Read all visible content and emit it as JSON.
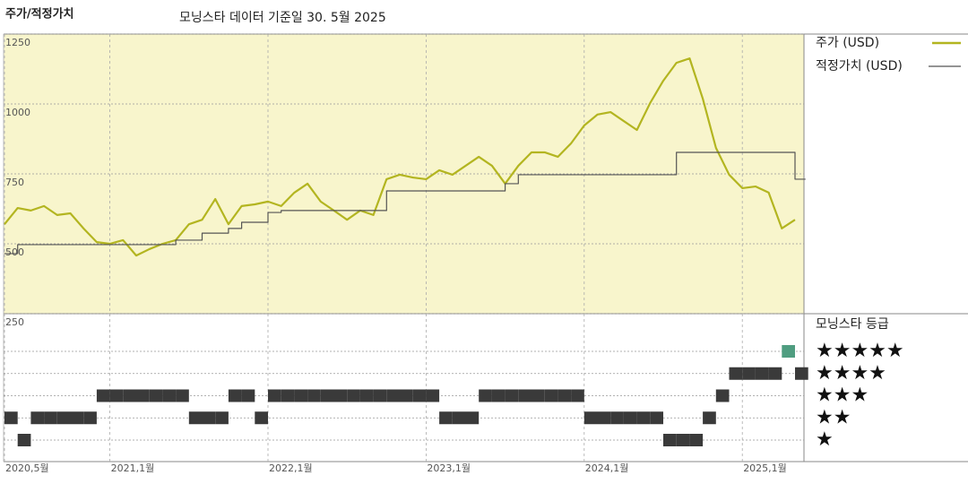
{
  "chart_data": {
    "type": "line",
    "title": "주가/적정가치",
    "subtitle": "모닝스타 데이터 기준일 30. 5월 2025",
    "x": [
      "2020-05",
      "2020-06",
      "2020-07",
      "2020-08",
      "2020-09",
      "2020-10",
      "2020-11",
      "2020-12",
      "2021-01",
      "2021-02",
      "2021-03",
      "2021-04",
      "2021-05",
      "2021-06",
      "2021-07",
      "2021-08",
      "2021-09",
      "2021-10",
      "2021-11",
      "2021-12",
      "2022-01",
      "2022-02",
      "2022-03",
      "2022-04",
      "2022-05",
      "2022-06",
      "2022-07",
      "2022-08",
      "2022-09",
      "2022-10",
      "2022-11",
      "2022-12",
      "2023-01",
      "2023-02",
      "2023-03",
      "2023-04",
      "2023-05",
      "2023-06",
      "2023-07",
      "2023-08",
      "2023-09",
      "2023-10",
      "2023-11",
      "2023-12",
      "2024-01",
      "2024-02",
      "2024-03",
      "2024-04",
      "2024-05",
      "2024-06",
      "2024-07",
      "2024-08",
      "2024-09",
      "2024-10",
      "2024-11",
      "2024-12",
      "2025-01",
      "2025-02",
      "2025-03",
      "2025-04",
      "2025-05"
    ],
    "series": [
      {
        "name": "주가 (USD)",
        "color": "#b3b520",
        "style": "line",
        "values": [
          570,
          628,
          619,
          635,
          603,
          609,
          555,
          506,
          500,
          513,
          458,
          481,
          500,
          513,
          570,
          586,
          660,
          570,
          635,
          641,
          651,
          635,
          683,
          715,
          651,
          619,
          586,
          619,
          603,
          731,
          747,
          737,
          731,
          763,
          747,
          779,
          811,
          779,
          715,
          779,
          827,
          827,
          811,
          859,
          923,
          962,
          971,
          939,
          907,
          1003,
          1083,
          1147,
          1163,
          1019,
          843,
          747,
          699,
          705,
          683,
          555,
          586
        ]
      },
      {
        "name": "적정가치 (USD)",
        "color": "#555555",
        "style": "step",
        "values": [
          465,
          497,
          497,
          497,
          497,
          497,
          497,
          497,
          497,
          497,
          497,
          497,
          497,
          513,
          513,
          538,
          538,
          555,
          577,
          577,
          612,
          619,
          619,
          619,
          619,
          619,
          619,
          619,
          619,
          689,
          689,
          689,
          689,
          689,
          689,
          689,
          689,
          689,
          715,
          747,
          747,
          747,
          747,
          747,
          747,
          747,
          747,
          747,
          747,
          747,
          747,
          827,
          827,
          827,
          827,
          827,
          827,
          827,
          827,
          827,
          731
        ]
      }
    ],
    "ylim": [
      250,
      1250
    ],
    "yticks": [
      250,
      500,
      750,
      1000,
      1250
    ],
    "xticks": [
      {
        "value": "2020-05",
        "label": "2020,5월"
      },
      {
        "value": "2021-01",
        "label": "2021,1월"
      },
      {
        "value": "2022-01",
        "label": "2022,1월"
      },
      {
        "value": "2023-01",
        "label": "2023,1월"
      },
      {
        "value": "2024-01",
        "label": "2024,1월"
      },
      {
        "value": "2025-01",
        "label": "2025,1월"
      }
    ],
    "grid": true,
    "rating": {
      "title": "모닝스타 등급",
      "labels": [
        "★",
        "★★",
        "★★★",
        "★★★★",
        "★★★★★"
      ],
      "color": "#3a3a3a",
      "top_color": "#4f9d80",
      "values": [
        2,
        1,
        2,
        2,
        2,
        2,
        2,
        3,
        3,
        3,
        3,
        3,
        3,
        3,
        2,
        2,
        2,
        3,
        3,
        2,
        3,
        3,
        3,
        3,
        3,
        3,
        3,
        3,
        3,
        3,
        3,
        3,
        3,
        2,
        2,
        2,
        3,
        3,
        3,
        3,
        3,
        3,
        3,
        3,
        2,
        2,
        2,
        2,
        2,
        2,
        1,
        1,
        1,
        2,
        3,
        4,
        4,
        4,
        4,
        5,
        4
      ]
    }
  }
}
